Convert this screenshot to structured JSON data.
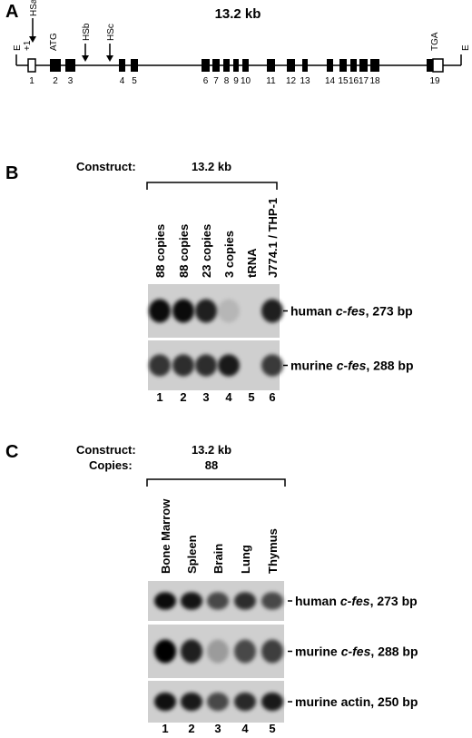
{
  "panel_a": {
    "label": "A",
    "title": "13.2 kb",
    "sites": {
      "left_ecori": "E",
      "start": "+1",
      "hsa": "HSa",
      "atg": "ATG",
      "hsb": "HSb",
      "hsc": "HSc",
      "tga": "TGA",
      "right_ecori": "E"
    },
    "exons": [
      "1",
      "2",
      "3",
      "4",
      "5",
      "6",
      "7",
      "8",
      "9",
      "10",
      "11",
      "12",
      "13",
      "14",
      "15",
      "16",
      "17",
      "18",
      "19"
    ]
  },
  "panel_b": {
    "label": "B",
    "construct_label": "Construct:",
    "construct": "13.2 kb",
    "lanes": [
      "88 copies",
      "88 copies",
      "23 copies",
      "3 copies",
      "tRNA",
      "J774.1 / THP-1"
    ],
    "bands": [
      {
        "prefix": "human",
        "gene": "c-fes",
        "suffix": ", 273 bp"
      },
      {
        "prefix": "murine",
        "gene": "c-fes",
        "suffix": ", 288 bp"
      }
    ],
    "lane_numbers": [
      "1",
      "2",
      "3",
      "4",
      "5",
      "6"
    ]
  },
  "panel_c": {
    "label": "C",
    "construct_label": "Construct:",
    "construct": "13.2 kb",
    "copies_label": "Copies:",
    "copies": "88",
    "lanes": [
      "Bone Marrow",
      "Spleen",
      "Brain",
      "Lung",
      "Thymus"
    ],
    "bands": [
      {
        "prefix": "human",
        "gene": "c-fes",
        "suffix": ", 273 bp"
      },
      {
        "prefix": "murine",
        "gene": "c-fes",
        "suffix": ", 288 bp"
      },
      {
        "prefix": "murine actin",
        "suffix": ", 250 bp"
      }
    ],
    "lane_numbers": [
      "1",
      "2",
      "3",
      "4",
      "5"
    ]
  }
}
